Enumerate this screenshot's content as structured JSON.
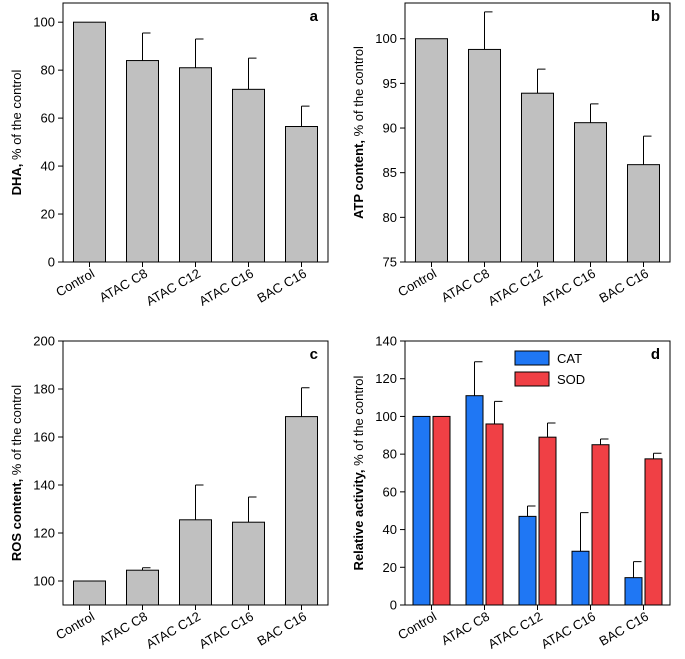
{
  "chart_data": [
    {
      "id": "a",
      "type": "bar",
      "panel_label": "a",
      "ylabel_bold": "DHA,",
      "ylabel_rest": " % of the control",
      "categories": [
        "Control",
        "ATAC C8",
        "ATAC C12",
        "ATAC C16",
        "BAC C16"
      ],
      "series": [
        {
          "name": "DHA",
          "color": "#c0c0c0",
          "values": [
            100,
            84,
            81,
            72,
            56.5
          ],
          "errors": [
            0,
            11.5,
            12,
            13,
            8.5
          ]
        }
      ],
      "ylim": [
        0,
        108
      ],
      "yticks": [
        0,
        20,
        40,
        60,
        80,
        100
      ],
      "ytick_labels": [
        "0",
        "20",
        "40",
        "60",
        "80",
        "100"
      ]
    },
    {
      "id": "b",
      "type": "bar",
      "panel_label": "b",
      "ylabel_bold": "ATP content,",
      "ylabel_rest": " % of the control",
      "categories": [
        "Control",
        "ATAC C8",
        "ATAC C12",
        "ATAC C16",
        "BAC C16"
      ],
      "series": [
        {
          "name": "ATP content",
          "color": "#c0c0c0",
          "values": [
            100,
            98.8,
            93.9,
            90.6,
            85.9
          ],
          "errors": [
            0,
            4.2,
            2.7,
            2.1,
            3.2
          ]
        }
      ],
      "ylim": [
        75,
        104
      ],
      "yticks": [
        75,
        80,
        85,
        90,
        95,
        100
      ],
      "ytick_labels": [
        "75",
        "80",
        "85",
        "90",
        "95",
        "100"
      ]
    },
    {
      "id": "c",
      "type": "bar",
      "panel_label": "c",
      "ylabel_bold": "ROS content,",
      "ylabel_rest": " % of the control",
      "categories": [
        "Control",
        "ATAC C8",
        "ATAC C12",
        "ATAC C16",
        "BAC C16"
      ],
      "series": [
        {
          "name": "ROS content",
          "color": "#c0c0c0",
          "values": [
            100,
            104.5,
            125.5,
            124.5,
            168.5
          ],
          "errors": [
            0,
            1,
            14.5,
            10.5,
            12
          ]
        }
      ],
      "ylim": [
        90,
        200
      ],
      "yticks": [
        100,
        120,
        140,
        160,
        180,
        200
      ],
      "ytick_labels": [
        "100",
        "120",
        "140",
        "160",
        "180",
        "200"
      ]
    },
    {
      "id": "d",
      "type": "bar",
      "panel_label": "d",
      "ylabel_bold": "Relative activity,",
      "ylabel_rest": " % of the control",
      "categories": [
        "Control",
        "ATAC C8",
        "ATAC C12",
        "ATAC C16",
        "BAC C16"
      ],
      "series": [
        {
          "name": "CAT",
          "color": "#1f77f4",
          "values": [
            100,
            111,
            47,
            28.5,
            14.5
          ],
          "errors": [
            0,
            18,
            5.5,
            20.5,
            8.5
          ]
        },
        {
          "name": "SOD",
          "color": "#f04045",
          "values": [
            100,
            96,
            89,
            85,
            77.5
          ],
          "errors": [
            0,
            12,
            7.5,
            3,
            3
          ]
        }
      ],
      "ylim": [
        0,
        140
      ],
      "yticks": [
        0,
        20,
        40,
        60,
        80,
        100,
        120,
        140
      ],
      "ytick_labels": [
        "0",
        "20",
        "40",
        "60",
        "80",
        "100",
        "120",
        "140"
      ],
      "legend": [
        "CAT",
        "SOD"
      ]
    }
  ]
}
